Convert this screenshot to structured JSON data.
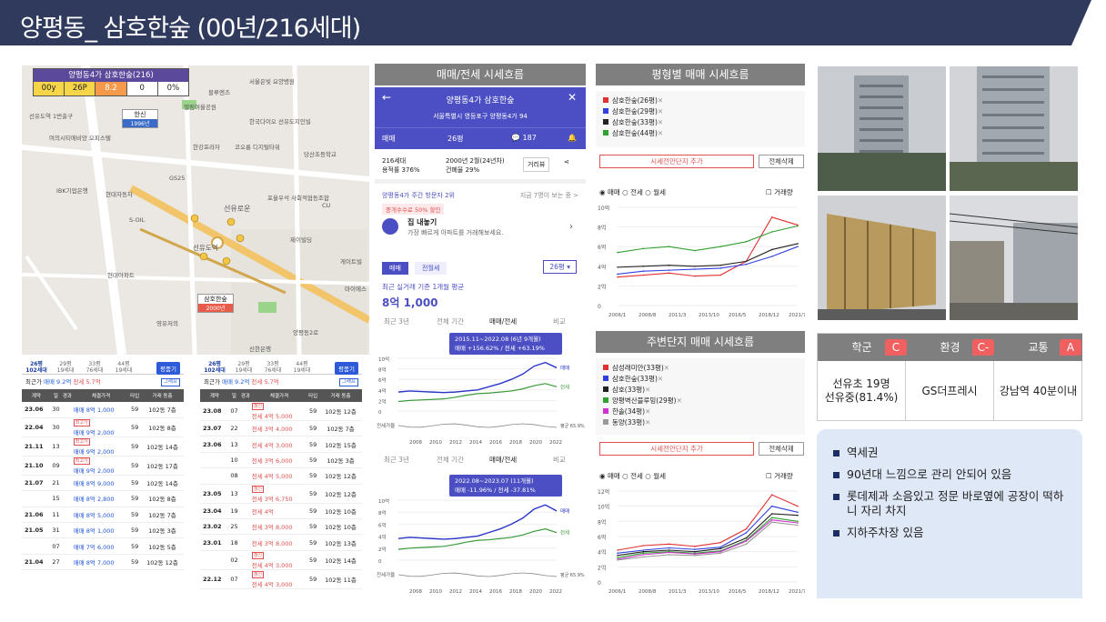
{
  "header": {
    "title": "양평동_ 삼호한숲 (00년/216세대)",
    "bg": "#2f3a5c"
  },
  "map": {
    "badge": {
      "title": "양평동4가 삼호한숲(216)",
      "cells": [
        "00y",
        "26P",
        "8.2",
        "0",
        "0%"
      ]
    },
    "places": [
      "블루엔즈",
      "서울은빛 요양병원",
      "선유도역 1번출구",
      "여의시티에비앙 오피스텔",
      "엘림여울공원",
      "한국다이오 선유도지인빌",
      "한신",
      "1996년",
      "삼호한숲",
      "2000년",
      "한강프라자",
      "코오롱 디지털타워",
      "당산초등학교",
      "GS25",
      "IBK기업은행",
      "현대자동차",
      "S-OIL",
      "선유로운",
      "포울우석 사회적협동조합",
      "CU",
      "역세권",
      "롯데프리미엄 아울렛",
      "양평로",
      "선유도역",
      "제이빌딩",
      "청구",
      "게이트빌",
      "역사코스텔",
      "청리예술 교육센터",
      "현대아파트",
      "롯데홈쇼핑 서울본사",
      "영유저의",
      "플로우빌",
      "양평동2로",
      "신한은행",
      "마이에스",
      "showand tell",
      "한양프라디움",
      "블루엔즈",
      "영등포 공원",
      "이성 가든하이"
    ]
  },
  "list1": {
    "types": [
      [
        "26평",
        "102세대"
      ],
      [
        "29평",
        "19세대"
      ],
      [
        "33평",
        "76세대"
      ],
      [
        "44평",
        "19세대"
      ]
    ],
    "view_btn": "평품기",
    "info": [
      "최근가 ",
      "매매 9.2억",
      "  전세 5.7억"
    ],
    "graph_btn": "그래프",
    "cols": [
      "계약",
      "일",
      "경과",
      "체결가격",
      "타입",
      "거래 동층"
    ],
    "rows": [
      [
        "23.06",
        "30",
        "",
        "",
        "매매 8억 1,000",
        "59",
        "102동 7층"
      ],
      [
        "22.04",
        "30",
        "",
        "최고가",
        "매매 9억 2,000",
        "59",
        "102동 8층"
      ],
      [
        "21.11",
        "13",
        "",
        "최고가",
        "매매 9억 2,000",
        "59",
        "102동 14층"
      ],
      [
        "21.10",
        "09",
        "",
        "최고가",
        "매매 9억 2,000",
        "59",
        "102동 17층"
      ],
      [
        "21.07",
        "21",
        "",
        "",
        "매매 8억 9,000",
        "59",
        "102동 14층"
      ],
      [
        "",
        "15",
        "",
        "",
        "매매 8억 2,800",
        "59",
        "102동 8층"
      ],
      [
        "21.06",
        "11",
        "",
        "",
        "매매 8억 5,000",
        "59",
        "102동 7층"
      ],
      [
        "21.05",
        "31",
        "",
        "",
        "매매 8억 1,000",
        "59",
        "102동 3층"
      ],
      [
        "",
        "07",
        "",
        "",
        "매매 7억 6,000",
        "59",
        "102동 5층"
      ],
      [
        "21.04",
        "27",
        "",
        "",
        "매매 8억 7,000",
        "59",
        "102동 12층"
      ]
    ]
  },
  "list2": {
    "types": [
      [
        "26평",
        "102세대"
      ],
      [
        "29평",
        "19세대"
      ],
      [
        "33평",
        "76세대"
      ],
      [
        "44평",
        "19세대"
      ]
    ],
    "view_btn": "평품기",
    "info": [
      "최근가 ",
      "매매 9.2억",
      "  전세 5.7억"
    ],
    "graph_btn": "그래프",
    "cols": [
      "계약",
      "일",
      "경과",
      "체결가격",
      "타입",
      "거래 동층"
    ],
    "rows": [
      [
        "23.08",
        "07",
        "",
        "갱신",
        "전세 4억 5,000",
        "59",
        "102동 12층"
      ],
      [
        "23.07",
        "22",
        "",
        "",
        "전세 3억 4,000",
        "59",
        "102동 7층"
      ],
      [
        "23.06",
        "13",
        "",
        "",
        "전세 4억 3,000",
        "59",
        "102동 15층"
      ],
      [
        "",
        "10",
        "",
        "",
        "전세 3억 6,000",
        "59",
        "102동 3층"
      ],
      [
        "",
        "08",
        "",
        "",
        "전세 4억 5,000",
        "59",
        "102동 12층"
      ],
      [
        "23.05",
        "13",
        "",
        "갱신",
        "전세 3억 6,750",
        "59",
        "102동 12층"
      ],
      [
        "23.04",
        "19",
        "",
        "",
        "전세 4억",
        "59",
        "102동 10층"
      ],
      [
        "23.02",
        "25",
        "",
        "",
        "전세 3억 8,000",
        "59",
        "102동 10층"
      ],
      [
        "23.01",
        "18",
        "",
        "",
        "전세 3억 8,000",
        "59",
        "102동 13층"
      ],
      [
        "",
        "02",
        "",
        "갱신",
        "전세 4억 3,000",
        "59",
        "102동 14층"
      ],
      [
        "22.12",
        "07",
        "",
        "갱신",
        "전세 4억 3,000",
        "59",
        "102동 11층"
      ]
    ]
  },
  "middle": {
    "section_title": "매매/전세 시세흐름",
    "app_title": "양평동4가 삼호한숲",
    "address": "서울특별시 영등포구 양평동4가 94",
    "tabs": [
      "매매",
      "26평",
      "187"
    ],
    "units": "216세대",
    "ratio": "용적률 376%",
    "built": "2000년 2월(24년차)",
    "bcr": "건폐율 29%",
    "street_btn": "거리뷰",
    "visitors": "양평동4가 주간 방문자 2위",
    "visitors_now": "지금 7명이 보는 중 >",
    "promo": "중개수수료 50% 할인",
    "sell_title": "집 내놓기",
    "sell_sub": "가장 빠르게 아파트를 거래해보세요.",
    "tab_sale": "매매",
    "tab_jeon": "전월세",
    "size_sel": "26평",
    "recent_label": "최근 실거래 기준 1개월 평균",
    "recent_price": "8억 1,000",
    "period_tabs": [
      "최근 3년",
      "전체 기간",
      "매매/전세",
      "비교"
    ],
    "box1": [
      "2015.11~2022.08 (6년 9개월)",
      "매매 +156.62% / 전세 +63.19%"
    ],
    "box2": [
      "2022.08~2023.07 (11개월)",
      "매매 -11.96% / 전세 -37.81%"
    ],
    "yticks": [
      "10억",
      "8억",
      "6억",
      "4억",
      "2억",
      "0"
    ],
    "xticks": [
      "2008",
      "2010",
      "2012",
      "2014",
      "2016",
      "2018",
      "2020",
      "2022"
    ],
    "series_labels": [
      "매매",
      "전세",
      "평균 65.9%"
    ],
    "volume_label": "전세가율"
  },
  "chart_area": {
    "title": "평형별 매매 시세흐름",
    "legend": [
      "삼호한숲(26평)",
      "삼호한숲(29평)",
      "삼호한숲(33평)",
      "삼호한숲(44평)"
    ],
    "add_btn": "시세전안단지 추가",
    "del_btn": "전체삭제",
    "radios": [
      "매매",
      "전세",
      "월세"
    ],
    "check": "거래량"
  },
  "chart_area2": {
    "title": "주변단지 매매 시세흐름",
    "legend": [
      "삼성래미안(33평)",
      "삼호한숲(33평)",
      "삼호(33평)",
      "양평벽산블루밍(29평)",
      "한솔(34평)",
      "동양(33평)"
    ],
    "add_btn": "시세전안단지 추가",
    "del_btn": "전체삭제",
    "radios": [
      "매매",
      "전세",
      "월세"
    ],
    "check": "거래량"
  },
  "chart_data": [
    {
      "type": "line",
      "title": "평형별 매매 시세흐름",
      "ylabel": "",
      "ylim": [
        0,
        10
      ],
      "yticks": [
        "10억",
        "8억",
        "6억",
        "4억",
        "2억",
        "0"
      ],
      "xticks": [
        "2006/1",
        "2008/8",
        "2011/3",
        "2013/10",
        "2016/5",
        "2018/12",
        "2021/7"
      ],
      "series": [
        {
          "name": "삼호한숲(26평)",
          "color": "#e03030",
          "values": [
            2.9,
            3.1,
            3.3,
            3.0,
            3.1,
            4.5,
            9.0,
            8.2
          ]
        },
        {
          "name": "삼호한숲(29평)",
          "color": "#3040e0",
          "values": [
            3.2,
            3.5,
            3.6,
            3.7,
            3.8,
            4.2,
            5.0,
            6.0
          ]
        },
        {
          "name": "삼호한숲(33평)",
          "color": "#222222",
          "values": [
            3.9,
            4.0,
            4.1,
            4.0,
            4.1,
            4.5,
            5.7,
            6.3
          ]
        },
        {
          "name": "삼호한숲(44평)",
          "color": "#30a030",
          "values": [
            5.4,
            5.8,
            6.0,
            5.6,
            6.0,
            6.5,
            7.5,
            8.1
          ]
        }
      ]
    },
    {
      "type": "line",
      "title": "주변단지 매매 시세흐름",
      "ylabel": "",
      "ylim": [
        0,
        12
      ],
      "yticks": [
        "12억",
        "10억",
        "8억",
        "6억",
        "4억",
        "2억",
        "0"
      ],
      "xticks": [
        "2006/1",
        "2008/8",
        "2011/3",
        "2013/10",
        "2016/5",
        "2018/12",
        "2021/7"
      ],
      "series": [
        {
          "name": "삼성래미안(33평)",
          "color": "#e03030",
          "values": [
            4.2,
            4.8,
            5.0,
            4.7,
            5.2,
            7.0,
            11.5,
            10.0
          ]
        },
        {
          "name": "삼호한숲(33평)",
          "color": "#3040e0",
          "values": [
            3.8,
            4.2,
            4.5,
            4.3,
            4.6,
            6.5,
            10.0,
            9.2
          ]
        },
        {
          "name": "삼호(33평)",
          "color": "#222222",
          "values": [
            3.5,
            4.0,
            4.2,
            4.0,
            4.4,
            5.8,
            9.0,
            8.8
          ]
        },
        {
          "name": "양평벽산블루밍(29평)",
          "color": "#30a030",
          "values": [
            3.2,
            3.8,
            4.0,
            3.8,
            4.1,
            5.5,
            8.5,
            8.0
          ]
        },
        {
          "name": "한솔(34평)",
          "color": "#d030d0",
          "values": [
            3.0,
            3.6,
            3.9,
            3.7,
            4.0,
            5.4,
            8.2,
            7.8
          ]
        },
        {
          "name": "동양(33평)",
          "color": "#999999",
          "values": [
            2.9,
            3.3,
            3.6,
            3.5,
            3.8,
            5.0,
            7.9,
            7.5
          ]
        }
      ]
    }
  ],
  "score": {
    "cols": [
      "학군",
      "환경",
      "교통"
    ],
    "grades": [
      "C",
      "C-",
      "A"
    ],
    "vals": [
      "선유초 19명\n선유중(81.4%)",
      "GS더프레시",
      "강남역 40분이내"
    ]
  },
  "notes": [
    "역세권",
    "90년대 느낌으로 관리 안되어 있음",
    "롯데제과 소음있고 정문 바로옆에 공장이 떡하니 자리 차지",
    "지하주차장 있음"
  ]
}
